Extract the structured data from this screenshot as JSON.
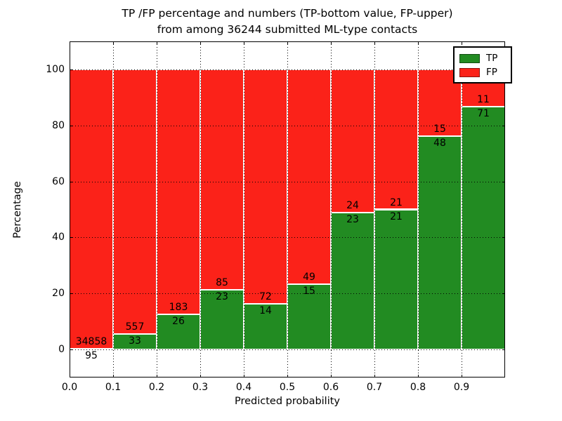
{
  "chart_data": {
    "type": "bar",
    "stacked": true,
    "title_line1": "TP /FP percentage and numbers (TP-bottom value, FP-upper)",
    "title_line2": "from among 36244 submitted ML-type contacts",
    "xlabel": "Predicted probability",
    "ylabel": "Percentage",
    "xlim": [
      0,
      1
    ],
    "ylim": [
      -10,
      110
    ],
    "xticks": [
      "0.0",
      "0.1",
      "0.2",
      "0.3",
      "0.4",
      "0.5",
      "0.6",
      "0.7",
      "0.8",
      "0.9"
    ],
    "yticks": [
      0,
      20,
      40,
      60,
      80,
      100
    ],
    "grid": true,
    "grid_style": "dotted",
    "colors": {
      "tp": "#228b22",
      "fp": "#fb2219",
      "bar_edge": "#ffffff"
    },
    "legend": {
      "position": "upper right",
      "entries": [
        {
          "label": "TP",
          "color": "#228b22"
        },
        {
          "label": "FP",
          "color": "#fb2219"
        }
      ]
    },
    "bins": [
      {
        "range": [
          0.0,
          0.1
        ],
        "tp": 95,
        "fp": 34858
      },
      {
        "range": [
          0.1,
          0.2
        ],
        "tp": 33,
        "fp": 557
      },
      {
        "range": [
          0.2,
          0.3
        ],
        "tp": 26,
        "fp": 183
      },
      {
        "range": [
          0.3,
          0.4
        ],
        "tp": 23,
        "fp": 85
      },
      {
        "range": [
          0.4,
          0.5
        ],
        "tp": 14,
        "fp": 72
      },
      {
        "range": [
          0.5,
          0.6
        ],
        "tp": 15,
        "fp": 49
      },
      {
        "range": [
          0.6,
          0.7
        ],
        "tp": 23,
        "fp": 24
      },
      {
        "range": [
          0.7,
          0.8
        ],
        "tp": 21,
        "fp": 21
      },
      {
        "range": [
          0.8,
          0.9
        ],
        "tp": 48,
        "fp": 15
      },
      {
        "range": [
          0.9,
          1.0
        ],
        "tp": 71,
        "fp": 11
      }
    ]
  }
}
